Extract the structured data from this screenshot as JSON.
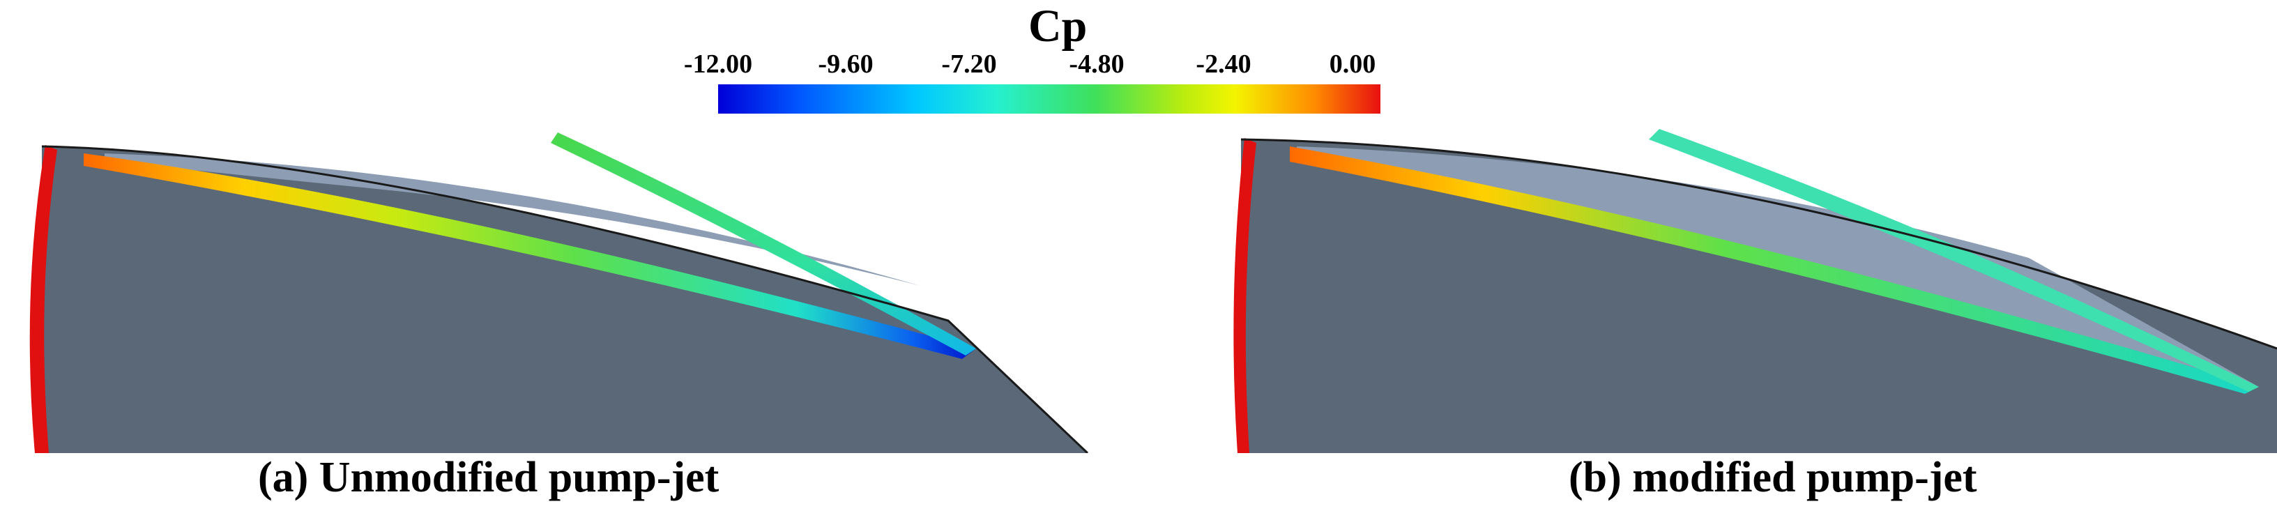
{
  "colorbar": {
    "title": "Cp",
    "ticks": [
      "-12.00",
      "-9.60",
      "-7.20",
      "-4.80",
      "-2.40",
      "0.00"
    ],
    "range": [
      -12.0,
      0.0
    ],
    "colors": [
      "#0000d8",
      "#00c8ff",
      "#3fe05a",
      "#f4f400",
      "#e81010"
    ]
  },
  "panels": [
    {
      "caption": "(a) Unmodified pump-jet"
    },
    {
      "caption": "(b) modified pump-jet"
    }
  ],
  "colors": {
    "blade": "#5a6878",
    "tip_gap": "#8c9db4",
    "hub_red": "#e01010"
  }
}
